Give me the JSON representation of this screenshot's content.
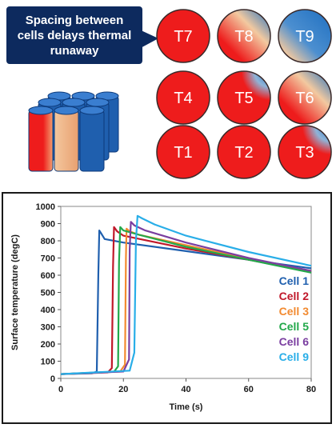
{
  "callout": {
    "line1": "Spacing between",
    "line2": "cells delays thermal",
    "line3": "runaway"
  },
  "cells": [
    {
      "label": "T7",
      "state": "hot"
    },
    {
      "label": "T8",
      "state": "warming"
    },
    {
      "label": "T9",
      "state": "cool"
    },
    {
      "label": "T4",
      "state": "hot"
    },
    {
      "label": "T5",
      "state": "hot-corner"
    },
    {
      "label": "T6",
      "state": "warming"
    },
    {
      "label": "T1",
      "state": "hot"
    },
    {
      "label": "T2",
      "state": "hot"
    },
    {
      "label": "T3",
      "state": "hot-corner"
    }
  ],
  "colors": {
    "hot": "#ee1c1c",
    "cool": "#1f6fc0",
    "warm": "#f2c9a0",
    "callout_bg": "#0d2a5e",
    "battery_blue": "#1f5fae"
  },
  "chart_data": {
    "type": "line",
    "title": "",
    "xlabel": "Time (s)",
    "ylabel": "Surface temperature (degC)",
    "xlim": [
      0,
      80
    ],
    "ylim": [
      0,
      1000
    ],
    "xticks": [
      0,
      20,
      40,
      60,
      80
    ],
    "yticks": [
      0,
      100,
      200,
      300,
      400,
      500,
      600,
      700,
      800,
      900,
      1000
    ],
    "legend_position": "right",
    "series": [
      {
        "name": "Cell 1",
        "color": "#1f5fae",
        "x": [
          0,
          10,
          11.5,
          12,
          12.3,
          13,
          14,
          20,
          40,
          60,
          80
        ],
        "y": [
          25,
          30,
          40,
          600,
          860,
          840,
          810,
          790,
          740,
          690,
          640
        ]
      },
      {
        "name": "Cell 2",
        "color": "#c0182a",
        "x": [
          0,
          15,
          16.3,
          16.7,
          17,
          18,
          20,
          40,
          60,
          80
        ],
        "y": [
          25,
          35,
          60,
          650,
          880,
          855,
          830,
          755,
          690,
          620
        ]
      },
      {
        "name": "Cell 3",
        "color": "#f28a30",
        "x": [
          0,
          19,
          20.5,
          20.8,
          21,
          22,
          25,
          40,
          60,
          80
        ],
        "y": [
          25,
          40,
          80,
          700,
          870,
          855,
          835,
          775,
          695,
          625
        ]
      },
      {
        "name": "Cell 5",
        "color": "#22a84a",
        "x": [
          0,
          17,
          18.3,
          18.6,
          19,
          20,
          25,
          40,
          60,
          80
        ],
        "y": [
          25,
          38,
          70,
          680,
          880,
          860,
          835,
          765,
          690,
          615
        ]
      },
      {
        "name": "Cell 6",
        "color": "#7a3ea0",
        "x": [
          0,
          20,
          21.8,
          22,
          22.4,
          23.5,
          27,
          40,
          60,
          80
        ],
        "y": [
          25,
          40,
          110,
          750,
          910,
          890,
          860,
          790,
          700,
          625
        ]
      },
      {
        "name": "Cell 9",
        "color": "#29aee8",
        "x": [
          0,
          22,
          23.5,
          24,
          24.5,
          26,
          30,
          40,
          60,
          80
        ],
        "y": [
          25,
          45,
          150,
          800,
          945,
          930,
          895,
          830,
          735,
          655
        ]
      }
    ]
  }
}
